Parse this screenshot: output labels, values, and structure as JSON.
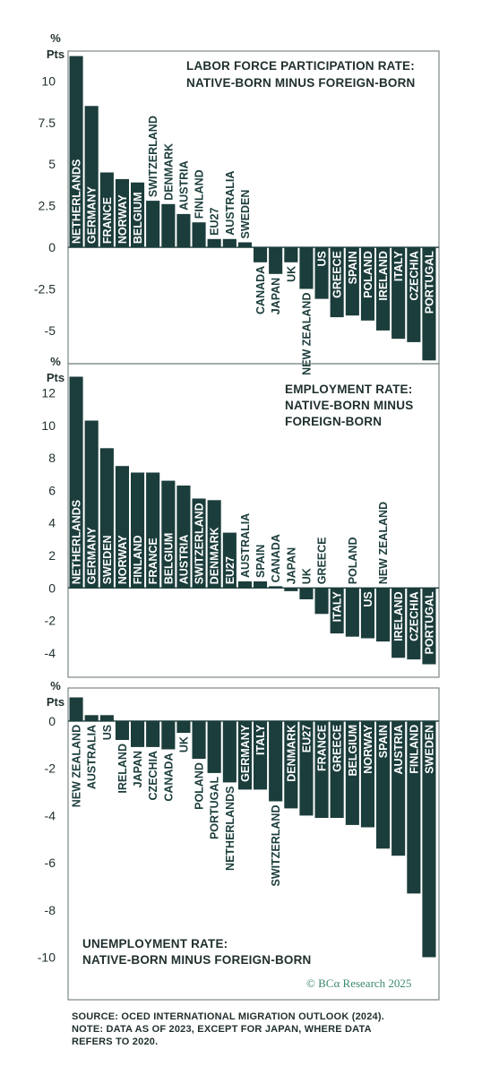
{
  "source_lines": [
    "SOURCE: OCED INTERNATIONAL MIGRATION OUTLOOK (2024).",
    "NOTE: DATA AS OF 2023, EXCEPT FOR JAPAN, WHERE DATA",
    "REFERS TO 2020."
  ],
  "brand": "© BCα Research 2025",
  "chart_data": [
    {
      "type": "bar",
      "title_lines": [
        "LABOR FORCE PARTICIPATION RATE:",
        "NATIVE-BORN MINUS FOREIGN-BORN"
      ],
      "unit_lines": [
        "%",
        "Pts"
      ],
      "ylim": [
        -7,
        11.8
      ],
      "yticks": [
        10,
        7.5,
        5,
        2.5,
        0,
        -2.5,
        -5
      ],
      "ytick_labels": [
        "10",
        "7.5",
        "5",
        "2.5",
        "0",
        "-2.5",
        "-5"
      ],
      "grid": false,
      "categories": [
        "NETHERLANDS",
        "GERMANY",
        "FRANCE",
        "NORWAY",
        "BELGIUM",
        "SWITZERLAND",
        "DENMARK",
        "AUSTRIA",
        "FINLAND",
        "EU27",
        "AUSTRALIA",
        "SWEDEN",
        "CANADA",
        "JAPAN",
        "UK",
        "NEW ZEALAND",
        "US",
        "GREECE",
        "SPAIN",
        "POLAND",
        "IRELAND",
        "ITALY",
        "CZECHIA",
        "PORTUGAL"
      ],
      "values": [
        11.5,
        8.5,
        4.5,
        4.1,
        3.9,
        2.8,
        2.6,
        2.0,
        1.5,
        0.5,
        0.5,
        0.3,
        -0.9,
        -1.6,
        -0.9,
        -2.5,
        -3.1,
        -4.2,
        -4.1,
        -4.4,
        -5.0,
        -5.5,
        -5.7,
        -6.8
      ]
    },
    {
      "type": "bar",
      "title_lines": [
        "EMPLOYMENT RATE:",
        "NATIVE-BORN MINUS",
        "FOREIGN-BORN"
      ],
      "unit_lines": [
        "%",
        "Pts"
      ],
      "ylim": [
        -5.5,
        13.8
      ],
      "yticks": [
        12,
        10,
        8,
        6,
        4,
        2,
        0,
        -2,
        -4
      ],
      "ytick_labels": [
        "12",
        "10",
        "8",
        "6",
        "4",
        "2",
        "0",
        "-2",
        "-4"
      ],
      "grid": false,
      "categories": [
        "NETHERLANDS",
        "GERMANY",
        "SWEDEN",
        "NORWAY",
        "FINLAND",
        "FRANCE",
        "BELGIUM",
        "AUSTRIA",
        "SWITZERLAND",
        "DENMARK",
        "EU27",
        "AUSTRALIA",
        "SPAIN",
        "CANADA",
        "JAPAN",
        "UK",
        "GREECE",
        "ITALY",
        "POLAND",
        "US",
        "NEW ZEALAND",
        "IRELAND",
        "CZECHIA",
        "PORTUGAL"
      ],
      "values": [
        13.0,
        10.3,
        8.6,
        7.5,
        7.1,
        7.1,
        6.6,
        6.3,
        5.5,
        5.4,
        3.4,
        0.4,
        0.4,
        0.1,
        -0.2,
        -0.7,
        -1.6,
        -2.8,
        -3.0,
        -3.1,
        -3.3,
        -4.3,
        -4.4,
        -4.7
      ]
    },
    {
      "type": "bar",
      "title_lines": [
        "UNEMPLOYMENT RATE:",
        "NATIVE-BORN MINUS FOREIGN-BORN"
      ],
      "unit_lines": [
        "%",
        "Pts"
      ],
      "ylim": [
        -11.8,
        1.4
      ],
      "yticks": [
        0,
        -2,
        -4,
        -6,
        -8,
        -10
      ],
      "ytick_labels": [
        "0",
        "-2",
        "-4",
        "-6",
        "-8",
        "-10"
      ],
      "grid": false,
      "categories": [
        "NEW ZEALAND",
        "AUSTRALIA",
        "US",
        "IRELAND",
        "JAPAN",
        "CZECHIA",
        "CANADA",
        "UK",
        "POLAND",
        "PORTUGAL",
        "NETHERLANDS",
        "GERMANY",
        "ITALY",
        "SWITZERLAND",
        "DENMARK",
        "EU27",
        "FRANCE",
        "GREECE",
        "BELGIUM",
        "NORWAY",
        "SPAIN",
        "AUSTRIA",
        "FINLAND",
        "SWEDEN"
      ],
      "values": [
        1.0,
        0.25,
        0.25,
        -0.8,
        -1.1,
        -1.1,
        -1.2,
        -0.5,
        -1.6,
        -2.2,
        -2.6,
        -2.9,
        -2.9,
        -3.4,
        -3.7,
        -4.0,
        -4.1,
        -4.1,
        -4.4,
        -4.5,
        -5.4,
        -5.7,
        -7.3,
        -10.0
      ]
    }
  ]
}
